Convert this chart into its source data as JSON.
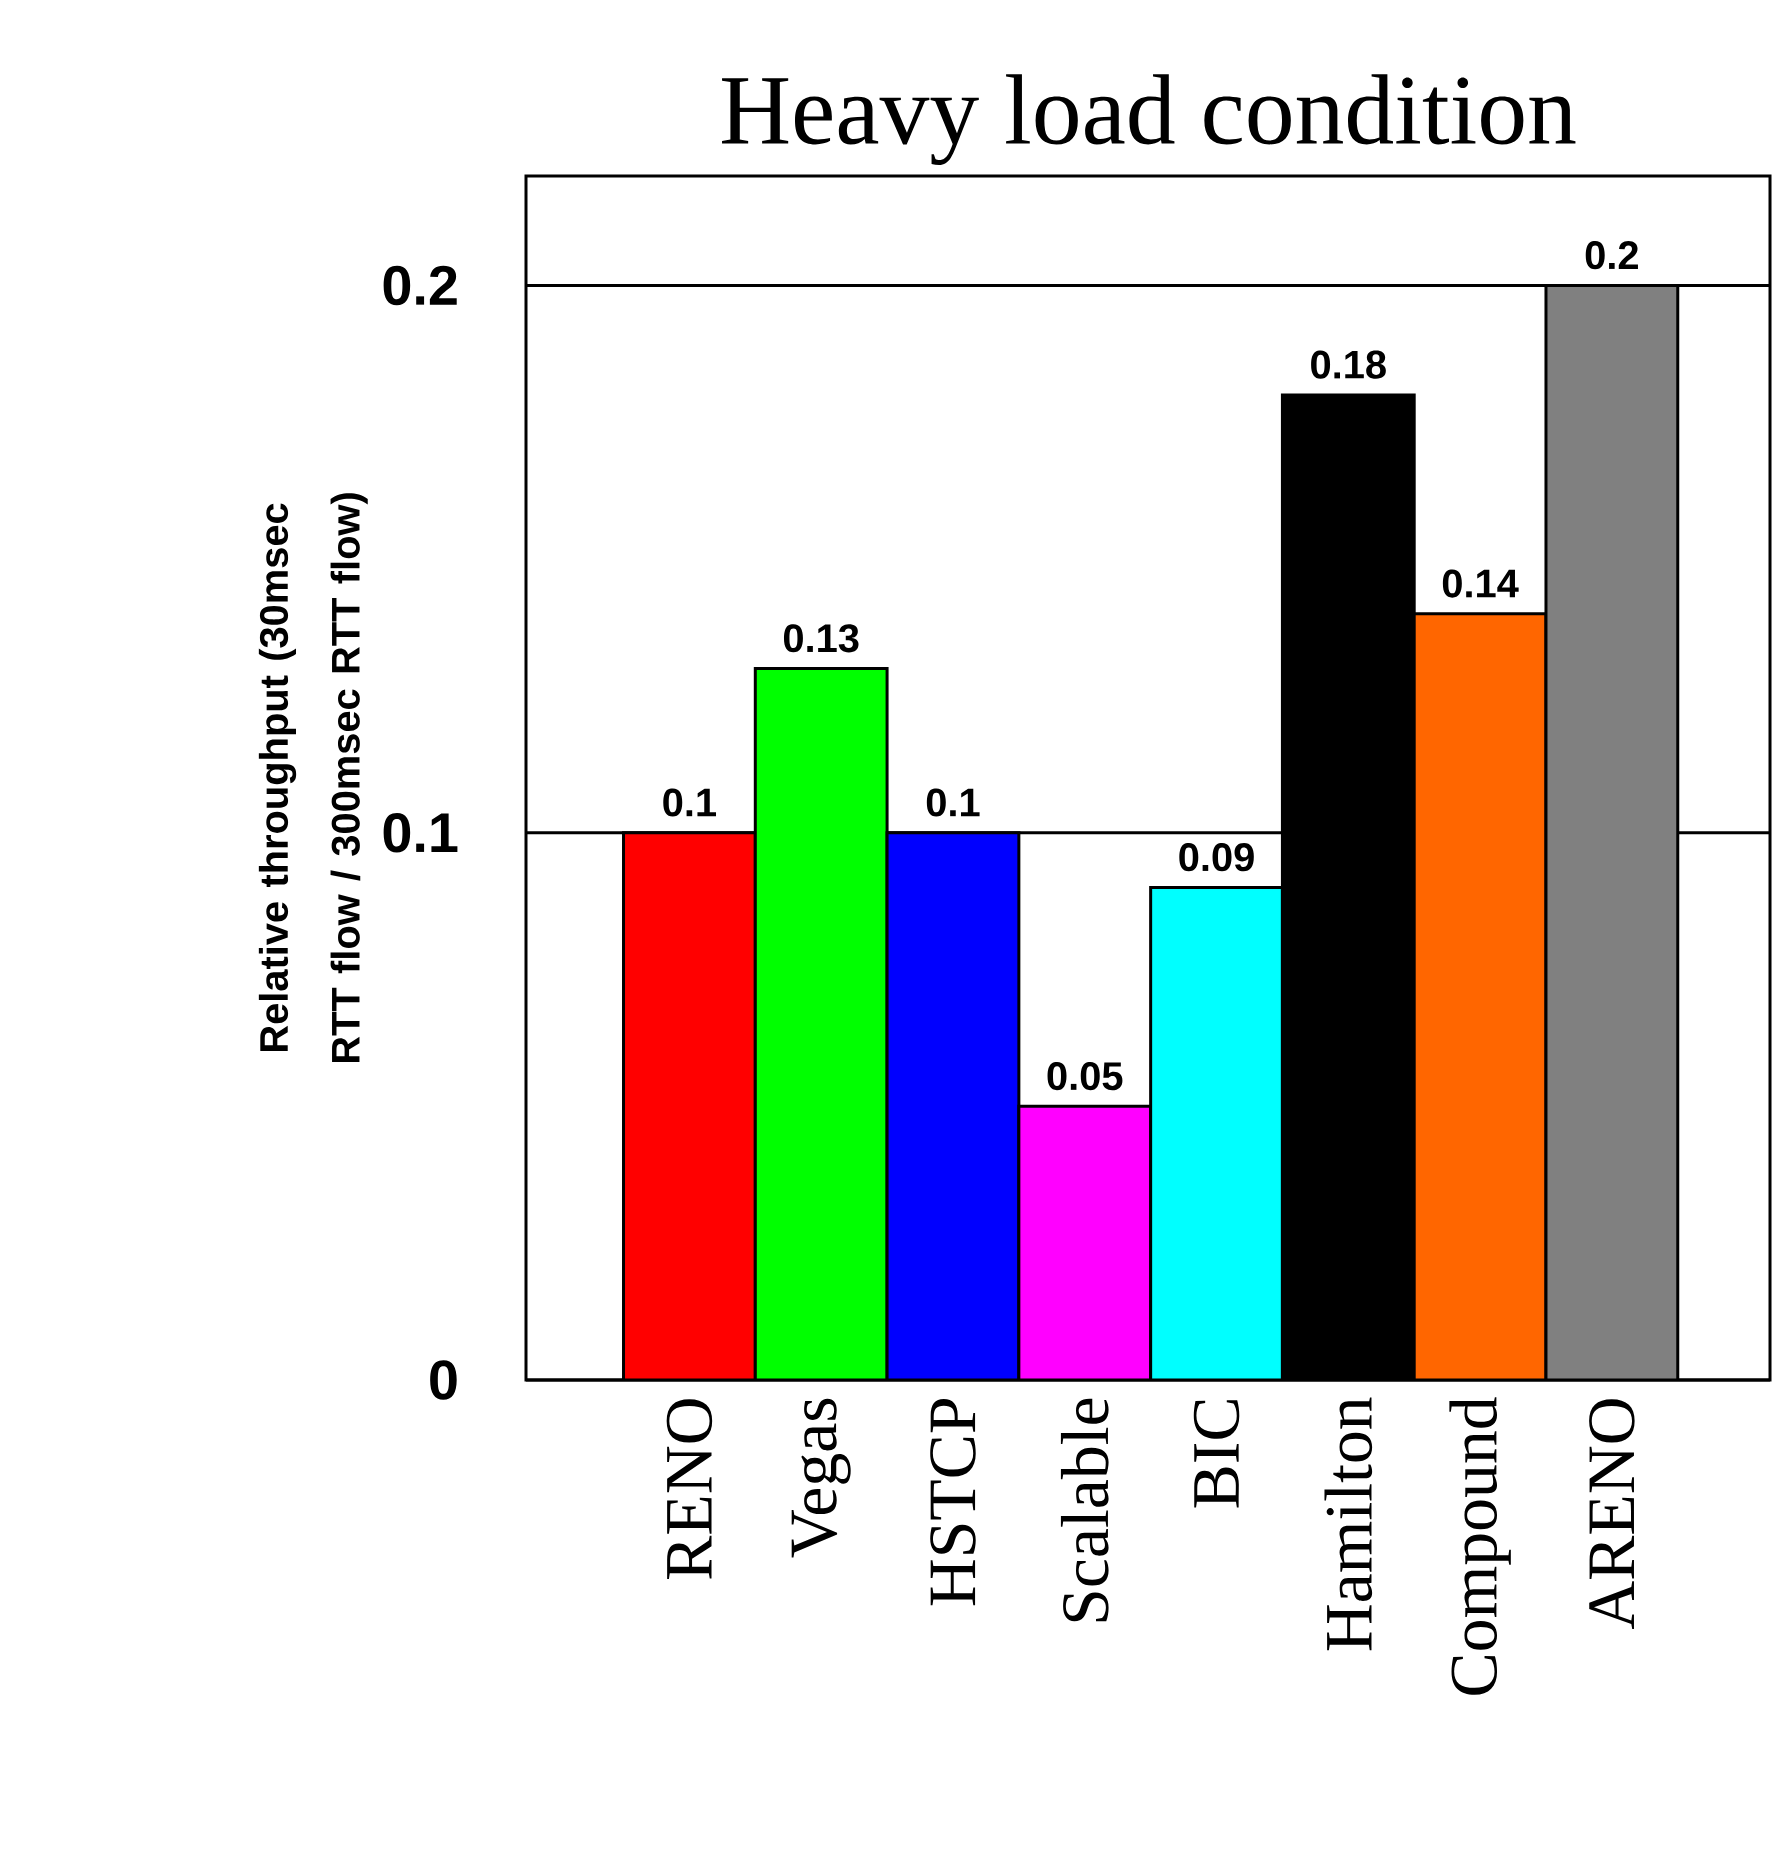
{
  "chart_data": {
    "type": "bar",
    "title": "Heavy load condition",
    "ylabel": "Relative throughput (30msec RTT flow / 300msec RTT flow)",
    "categories": [
      "RENO",
      "Vegas",
      "HSTCP",
      "Scalable",
      "BIC",
      "Hamilton",
      "Compound",
      "ARENO"
    ],
    "values": [
      0.1,
      0.13,
      0.1,
      0.05,
      0.09,
      0.18,
      0.14,
      0.2
    ],
    "colors": [
      "#ff0000",
      "#00ff00",
      "#0000ff",
      "#ff00ff",
      "#00ffff",
      "#000000",
      "#ff6600",
      "#808080"
    ],
    "ylim": [
      0,
      0.22
    ],
    "yticks": [
      0,
      0.1,
      0.2
    ],
    "grid": "y",
    "data_labels": true
  }
}
